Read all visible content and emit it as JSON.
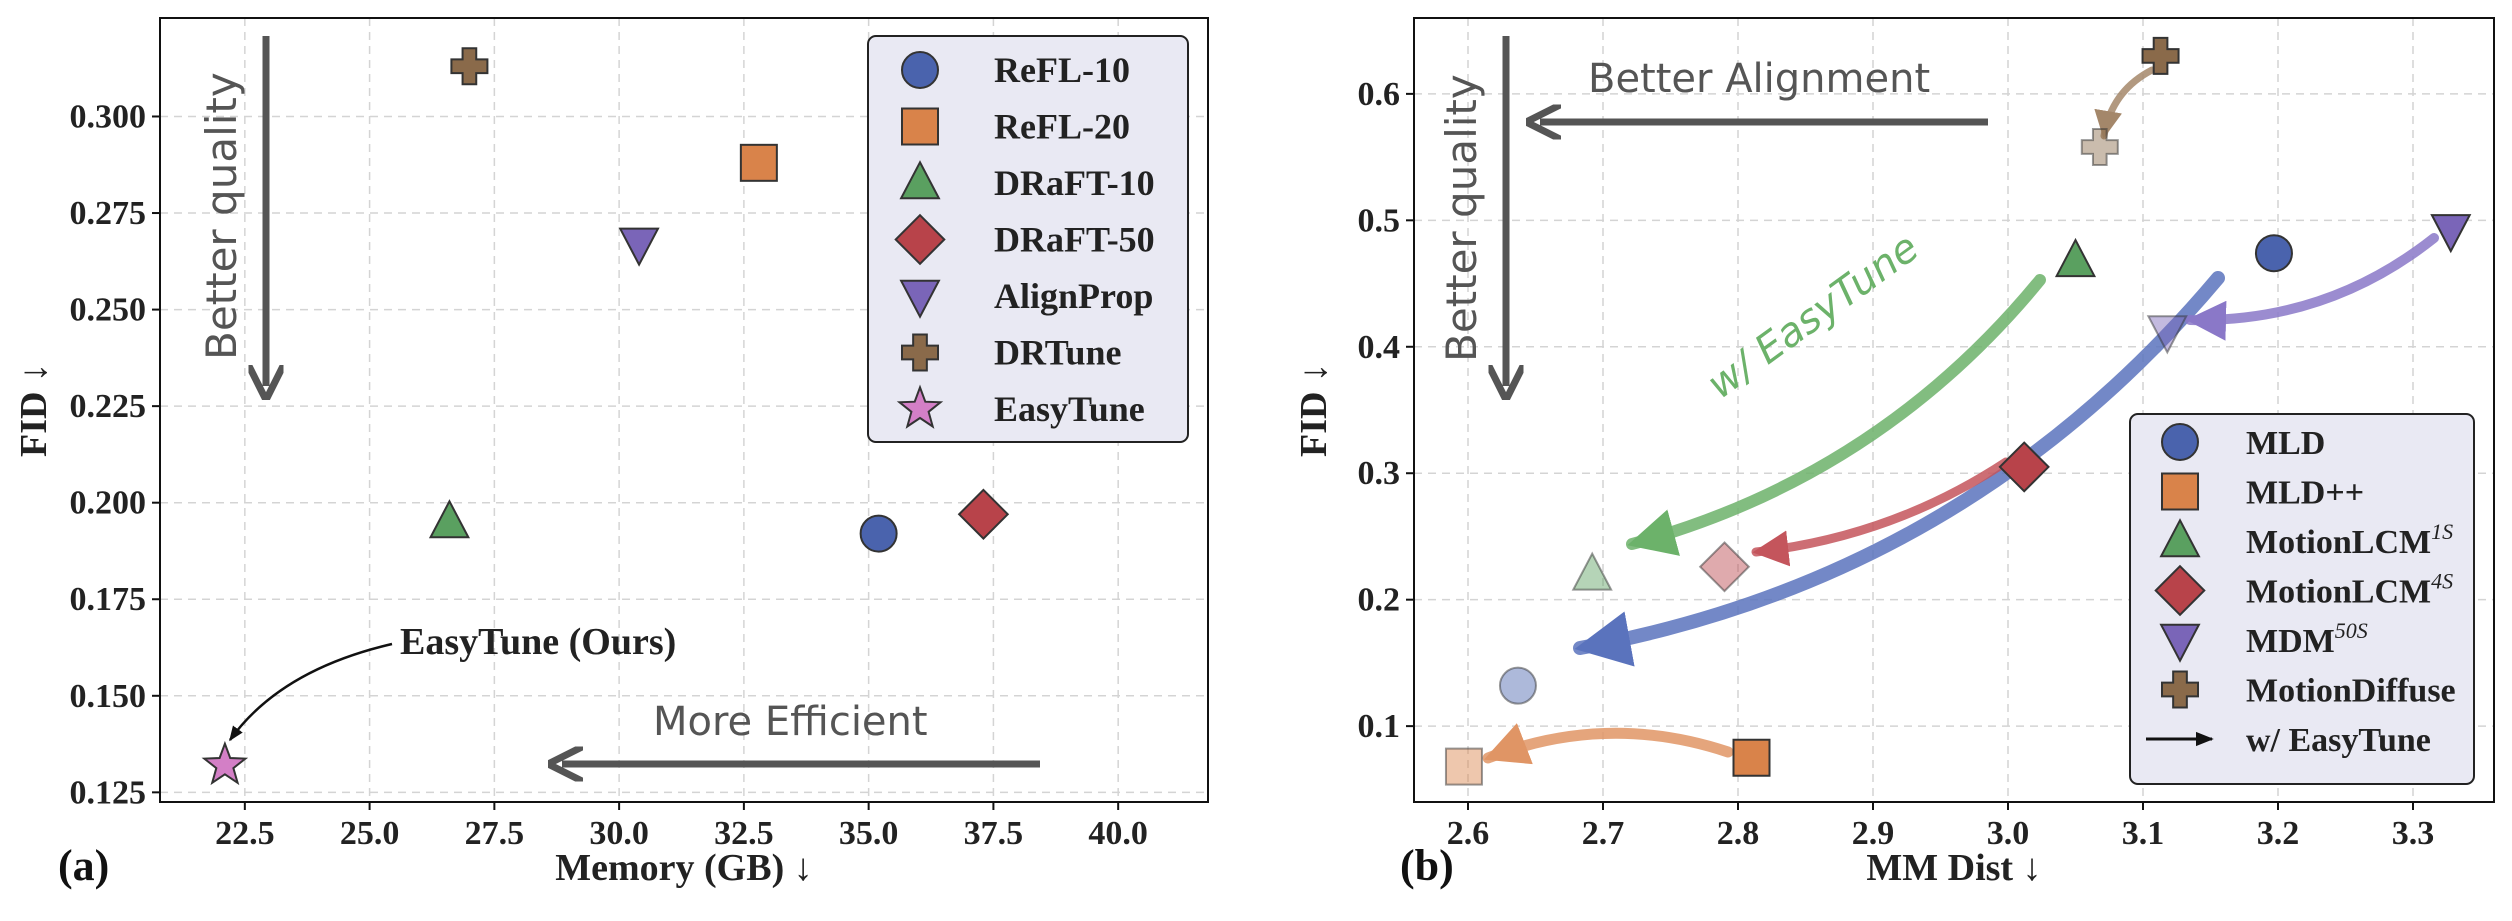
{
  "chart_data": [
    {
      "type": "scatter",
      "panel_label": "(a)",
      "xlabel": "Memory (GB) ↓",
      "ylabel": "FID ↓",
      "xlim": [
        20.8,
        41.8
      ],
      "ylim": [
        0.1225,
        0.3255
      ],
      "xticks": [
        22.5,
        25.0,
        27.5,
        30.0,
        32.5,
        35.0,
        37.5,
        40.0
      ],
      "yticks": [
        0.125,
        0.15,
        0.175,
        0.2,
        0.225,
        0.25,
        0.275,
        0.3
      ],
      "xtick_labels": [
        "22.5",
        "25.0",
        "27.5",
        "30.0",
        "32.5",
        "35.0",
        "37.5",
        "40.0"
      ],
      "ytick_labels": [
        "0.125",
        "0.150",
        "0.175",
        "0.200",
        "0.225",
        "0.250",
        "0.275",
        "0.300"
      ],
      "grid": true,
      "legend_position": "top-right",
      "points": [
        {
          "name": "ReFL-10",
          "x": 35.2,
          "y": 0.192,
          "marker": "circle",
          "color": "#4a63ad"
        },
        {
          "name": "ReFL-20",
          "x": 32.8,
          "y": 0.288,
          "marker": "square",
          "color": "#d9834a"
        },
        {
          "name": "DRaFT-10",
          "x": 26.6,
          "y": 0.195,
          "marker": "triangle-up",
          "color": "#5aa060"
        },
        {
          "name": "DRaFT-50",
          "x": 37.3,
          "y": 0.197,
          "marker": "diamond",
          "color": "#b8434a"
        },
        {
          "name": "AlignProp",
          "x": 30.4,
          "y": 0.267,
          "marker": "triangle-down",
          "color": "#7a65b8"
        },
        {
          "name": "DRTune",
          "x": 27.0,
          "y": 0.313,
          "marker": "plus",
          "color": "#8a6a4a"
        },
        {
          "name": "EasyTune",
          "x": 22.1,
          "y": 0.132,
          "marker": "star",
          "color": "#d37fc6"
        }
      ],
      "annotations": {
        "quality": "Better quality",
        "efficiency": "More Efficient",
        "callout": "EasyTune (Ours)"
      }
    },
    {
      "type": "scatter",
      "panel_label": "(b)",
      "xlabel": "MM Dist ↓",
      "ylabel": "FID ↓",
      "xlim": [
        2.56,
        3.36
      ],
      "ylim": [
        0.04,
        0.66
      ],
      "xticks": [
        2.6,
        2.7,
        2.8,
        2.9,
        3.0,
        3.1,
        3.2,
        3.3
      ],
      "yticks": [
        0.1,
        0.2,
        0.3,
        0.4,
        0.5,
        0.6
      ],
      "xtick_labels": [
        "2.6",
        "2.7",
        "2.8",
        "2.9",
        "3.0",
        "3.1",
        "3.2",
        "3.3"
      ],
      "ytick_labels": [
        "0.1",
        "0.2",
        "0.3",
        "0.4",
        "0.5",
        "0.6"
      ],
      "grid": true,
      "legend_position": "bottom-right",
      "series": [
        {
          "name": "MLD",
          "sup": "",
          "marker": "circle",
          "color": "#4a63ad",
          "before": {
            "x": 3.197,
            "y": 0.474
          },
          "after": {
            "x": 2.637,
            "y": 0.132
          }
        },
        {
          "name": "MLD++",
          "sup": "",
          "marker": "square",
          "color": "#d9834a",
          "before": {
            "x": 2.81,
            "y": 0.075
          },
          "after": {
            "x": 2.597,
            "y": 0.068
          }
        },
        {
          "name": "MotionLCM",
          "sup": "1S",
          "marker": "triangle-up",
          "color": "#5aa060",
          "before": {
            "x": 3.05,
            "y": 0.468
          },
          "after": {
            "x": 2.692,
            "y": 0.22
          }
        },
        {
          "name": "MotionLCM",
          "sup": "4S",
          "marker": "diamond",
          "color": "#b8434a",
          "before": {
            "x": 3.012,
            "y": 0.305
          },
          "after": {
            "x": 2.79,
            "y": 0.226
          }
        },
        {
          "name": "MDM",
          "sup": "50S",
          "marker": "triangle-down",
          "color": "#7a65b8",
          "before": {
            "x": 3.328,
            "y": 0.492
          },
          "after": {
            "x": 3.118,
            "y": 0.412
          }
        },
        {
          "name": "MotionDiffuse",
          "sup": "",
          "marker": "plus",
          "color": "#8a6a4a",
          "before": {
            "x": 3.113,
            "y": 0.63
          },
          "after": {
            "x": 3.068,
            "y": 0.558
          }
        }
      ],
      "arrow_legend": "w/ EasyTune",
      "annotations": {
        "quality": "Better quality",
        "alignment": "Better Alignment",
        "curve_label": "w/ EasyTune"
      }
    }
  ]
}
